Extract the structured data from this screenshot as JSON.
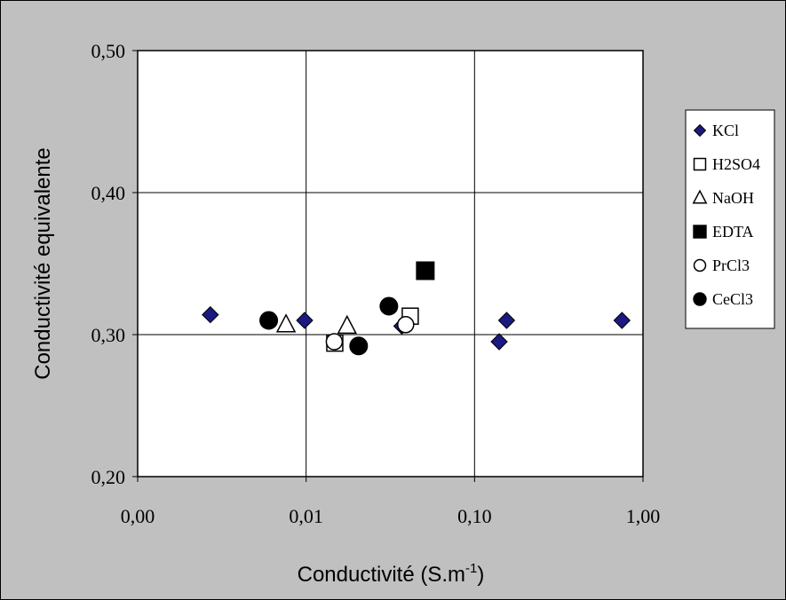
{
  "chart_data": {
    "type": "scatter",
    "xscale": "log",
    "xlabel": "Conductivité (S.m",
    "xlabel_sup": "-1",
    "xlabel_end": ")",
    "ylabel": "Conductivité equivalente",
    "xlim": [
      0.001,
      1
    ],
    "ylim": [
      0.2,
      0.5
    ],
    "x_ticks": [
      0.001,
      0.01,
      0.1,
      1
    ],
    "x_tick_labels": [
      "0,00",
      "0,01",
      "0,10",
      "1,00"
    ],
    "y_ticks": [
      0.2,
      0.3,
      0.4,
      0.5
    ],
    "y_tick_labels": [
      "0,20",
      "0,30",
      "0,40",
      "0,50"
    ],
    "grid": true,
    "legend_position": "right",
    "series": [
      {
        "name": "KCl",
        "marker": "diamond",
        "color": "#1a1a80",
        "points": [
          [
            0.0027,
            0.314
          ],
          [
            0.0098,
            0.31
          ],
          [
            0.037,
            0.306
          ],
          [
            0.14,
            0.295
          ],
          [
            0.155,
            0.31
          ],
          [
            0.75,
            0.31
          ]
        ]
      },
      {
        "name": "H2SO4",
        "marker": "square-open",
        "color": "#000000",
        "points": [
          [
            0.0148,
            0.294
          ],
          [
            0.0415,
            0.313
          ]
        ]
      },
      {
        "name": "NaOH",
        "marker": "triangle-open",
        "color": "#000000",
        "points": [
          [
            0.0076,
            0.307
          ],
          [
            0.0175,
            0.306
          ]
        ]
      },
      {
        "name": "EDTA",
        "marker": "square",
        "color": "#000000",
        "points": [
          [
            0.051,
            0.345
          ]
        ]
      },
      {
        "name": "PrCl3",
        "marker": "circle-open",
        "color": "#000000",
        "points": [
          [
            0.0147,
            0.295
          ],
          [
            0.039,
            0.307
          ]
        ]
      },
      {
        "name": "CeCl3",
        "marker": "circle",
        "color": "#000000",
        "points": [
          [
            0.006,
            0.31
          ],
          [
            0.0205,
            0.292
          ],
          [
            0.031,
            0.32
          ]
        ]
      }
    ]
  }
}
